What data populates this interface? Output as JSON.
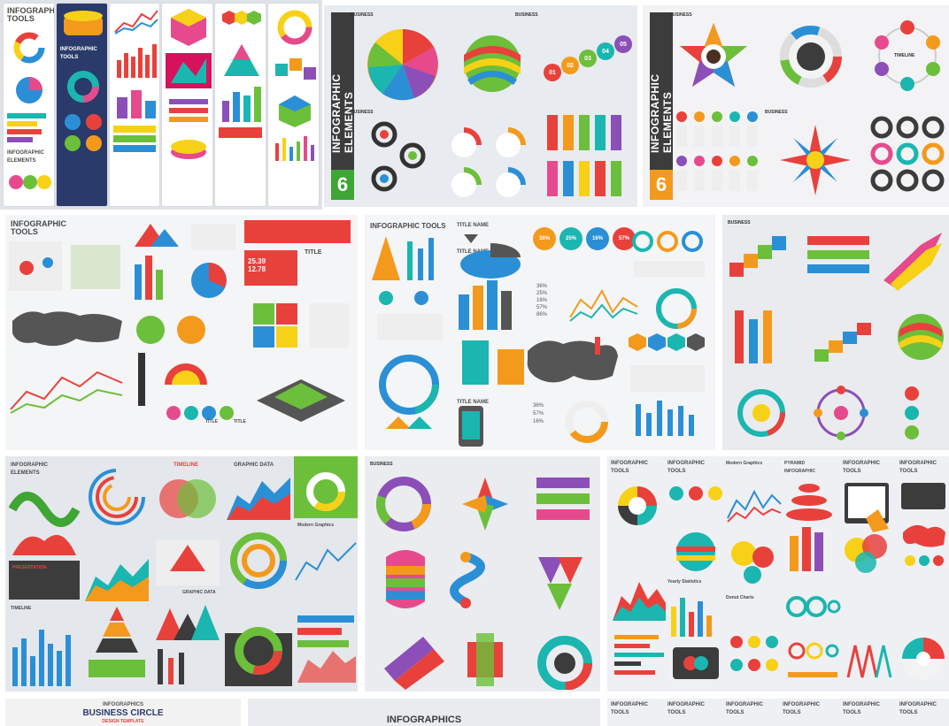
{
  "results": {
    "tiles": [
      {
        "labels": [
          "INFOGRAPHIC TOOLS",
          "INFOGRAPHIC TOOLS",
          "INFOGRAPHIC ELEMENTS"
        ]
      },
      {
        "title": "INFOGRAPHIC ELEMENTS",
        "badge": "6",
        "subtitles": [
          "BUSINESS",
          "BUSINESS",
          "BUSINESS"
        ],
        "steps": [
          "01",
          "02",
          "03",
          "04",
          "05"
        ]
      },
      {
        "title": "INFOGRAPHIC ELEMENTS",
        "badge": "6",
        "subtitles": [
          "BUSINESS",
          "BUSINESS",
          "TIMELINE"
        ]
      },
      {
        "labels": [
          "INFOGRAPHIC TOOLS",
          "TITLE",
          "TITLE",
          "TITLE"
        ],
        "numbers": [
          "25.39",
          "12.78"
        ]
      },
      {
        "labels": [
          "INFOGRAPHIC TOOLS",
          "TITLE NAME",
          "TITLE NAME",
          "TITLE NAME"
        ],
        "percents": [
          "36%",
          "25%",
          "16%",
          "57%",
          "36%",
          "25%",
          "16%",
          "57%",
          "86%",
          "36%",
          "57%",
          "16%"
        ]
      },
      {
        "labels": [
          "BUSINESS"
        ]
      },
      {
        "labels": [
          "INFOGRAPHIC ELEMENTS",
          "TIMELINE",
          "GRAPHIC DATA",
          "PRESENTATION",
          "TIMELINE",
          "GRAPHIC DATA",
          "Modern Graphics"
        ]
      },
      {
        "labels": [
          "BUSINESS"
        ]
      },
      {
        "labels": [
          "INFOGRAPHIC TOOLS",
          "INFOGRAPHIC TOOLS",
          "Modern Graphics",
          "PYRAMID INFOGRAPHIC",
          "INFOGRAPHIC TOOLS",
          "INFOGRAPHIC TOOLS",
          "Yearly Statistics",
          "Donut Charts"
        ]
      },
      {
        "brand": "INFOGRAPHICS",
        "title": "BUSINESS CIRCLE",
        "subtitle": "DESIGN TEMPLATE"
      },
      {
        "title": "INFOGRAPHICS"
      },
      {
        "labels": [
          "INFOGRAPHIC TOOLS",
          "INFOGRAPHIC TOOLS",
          "INFOGRAPHIC TOOLS",
          "INFOGRAPHIC TOOLS",
          "INFOGRAPHIC TOOLS",
          "INFOGRAPHIC TOOLS"
        ]
      }
    ]
  },
  "colors": {
    "tile_bg_light": "#eef0f3",
    "tile_bg_gray": "#d8dce2",
    "dark_band": "#3c3c3c",
    "badge_green": "#3fa535",
    "badge_orange": "#f39a1d",
    "red": "#e8413c",
    "orange": "#f39a1d",
    "yellow": "#f7d117",
    "green": "#6cbf3a",
    "teal": "#1bb6b0",
    "blue": "#2b8fd6",
    "purple": "#8c4fb8",
    "pink": "#e64a8c",
    "navy": "#2a3a6a"
  }
}
